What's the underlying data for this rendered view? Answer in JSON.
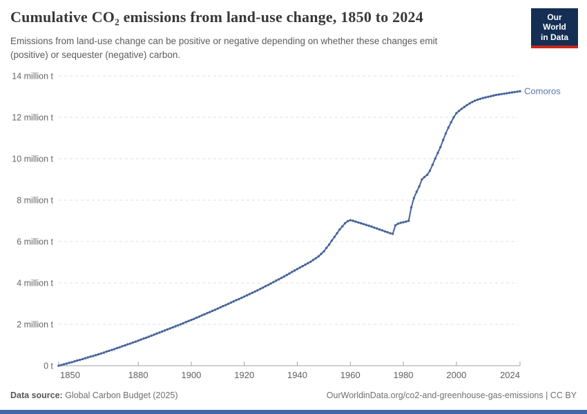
{
  "header": {
    "title": "Cumulative CO₂ emissions from land-use change, 1850 to 2024",
    "subtitle": "Emissions from land-use change can be positive or negative depending on whether these changes emit (positive) or sequester (negative) carbon.",
    "logo": {
      "line1": "Our World",
      "line2": "in Data",
      "bg_color": "#142E54",
      "accent_color": "#C7271C"
    }
  },
  "footer": {
    "source_label": "Data source:",
    "source_value": "Global Carbon Budget (2025)",
    "link": "OurWorldinData.org/co2-and-greenhouse-gas-emissions | CC BY"
  },
  "colors": {
    "line": "#46639B",
    "entity_label": "#5878AE",
    "gridline": "#e2e2e2",
    "axis": "#a0a0a0",
    "y_tick_text": "#666666",
    "x_tick_text": "#5f5f5f",
    "bottom_bar": "#4068A8"
  },
  "chart_data": {
    "type": "line",
    "title": "Cumulative CO₂ emissions from land-use change, 1850 to 2024",
    "subtitle": "Emissions from land-use change can be positive or negative depending on whether these changes emit (positive) or sequester (negative) carbon.",
    "unit": "t",
    "value_scale": "millions of tonnes",
    "xlabel": "",
    "ylabel": "",
    "xlim": [
      1850,
      2024
    ],
    "ylim_million_t": [
      0,
      14
    ],
    "grid": "horizontal-dashed",
    "legend_position": "line-end-label",
    "markers": true,
    "x_ticks": [
      {
        "v": 1850,
        "label": "1850"
      },
      {
        "v": 1880,
        "label": "1880"
      },
      {
        "v": 1900,
        "label": "1900"
      },
      {
        "v": 1920,
        "label": "1920"
      },
      {
        "v": 1940,
        "label": "1940"
      },
      {
        "v": 1960,
        "label": "1960"
      },
      {
        "v": 1980,
        "label": "1980"
      },
      {
        "v": 2000,
        "label": "2000"
      },
      {
        "v": 2024,
        "label": "2024"
      }
    ],
    "y_ticks": [
      {
        "v": 0,
        "label": "0 t"
      },
      {
        "v": 2,
        "label": "2 million t"
      },
      {
        "v": 4,
        "label": "4 million t"
      },
      {
        "v": 6,
        "label": "6 million t"
      },
      {
        "v": 8,
        "label": "8 million t"
      },
      {
        "v": 10,
        "label": "10 million t"
      },
      {
        "v": 12,
        "label": "12 million t"
      },
      {
        "v": 14,
        "label": "14 million t"
      }
    ],
    "series": [
      {
        "name": "Comoros",
        "color": "#46639B",
        "x": [
          1850,
          1851,
          1852,
          1853,
          1854,
          1855,
          1856,
          1857,
          1858,
          1859,
          1860,
          1861,
          1862,
          1863,
          1864,
          1865,
          1866,
          1867,
          1868,
          1869,
          1870,
          1871,
          1872,
          1873,
          1874,
          1875,
          1876,
          1877,
          1878,
          1879,
          1880,
          1881,
          1882,
          1883,
          1884,
          1885,
          1886,
          1887,
          1888,
          1889,
          1890,
          1891,
          1892,
          1893,
          1894,
          1895,
          1896,
          1897,
          1898,
          1899,
          1900,
          1901,
          1902,
          1903,
          1904,
          1905,
          1906,
          1907,
          1908,
          1909,
          1910,
          1911,
          1912,
          1913,
          1914,
          1915,
          1916,
          1917,
          1918,
          1919,
          1920,
          1921,
          1922,
          1923,
          1924,
          1925,
          1926,
          1927,
          1928,
          1929,
          1930,
          1931,
          1932,
          1933,
          1934,
          1935,
          1936,
          1937,
          1938,
          1939,
          1940,
          1941,
          1942,
          1943,
          1944,
          1945,
          1946,
          1947,
          1948,
          1949,
          1950,
          1951,
          1952,
          1953,
          1954,
          1955,
          1956,
          1957,
          1958,
          1959,
          1960,
          1961,
          1962,
          1963,
          1964,
          1965,
          1966,
          1967,
          1968,
          1969,
          1970,
          1971,
          1972,
          1973,
          1974,
          1975,
          1976,
          1977,
          1978,
          1979,
          1980,
          1981,
          1982,
          1983,
          1984,
          1985,
          1986,
          1987,
          1988,
          1989,
          1990,
          1991,
          1992,
          1993,
          1994,
          1995,
          1996,
          1997,
          1998,
          1999,
          2000,
          2001,
          2002,
          2003,
          2004,
          2005,
          2006,
          2007,
          2008,
          2009,
          2010,
          2011,
          2012,
          2013,
          2014,
          2015,
          2016,
          2017,
          2018,
          2019,
          2020,
          2021,
          2022,
          2023,
          2024
        ],
        "y_million_t": [
          0.0,
          0.03,
          0.07,
          0.1,
          0.14,
          0.17,
          0.21,
          0.25,
          0.28,
          0.32,
          0.36,
          0.4,
          0.44,
          0.47,
          0.51,
          0.55,
          0.59,
          0.63,
          0.68,
          0.72,
          0.76,
          0.8,
          0.85,
          0.89,
          0.94,
          0.98,
          1.03,
          1.07,
          1.12,
          1.16,
          1.21,
          1.26,
          1.31,
          1.35,
          1.4,
          1.45,
          1.5,
          1.55,
          1.6,
          1.65,
          1.7,
          1.75,
          1.8,
          1.85,
          1.9,
          1.95,
          2.0,
          2.05,
          2.11,
          2.16,
          2.21,
          2.26,
          2.32,
          2.37,
          2.43,
          2.48,
          2.54,
          2.59,
          2.65,
          2.7,
          2.76,
          2.82,
          2.88,
          2.93,
          2.99,
          3.05,
          3.11,
          3.17,
          3.22,
          3.28,
          3.34,
          3.4,
          3.46,
          3.52,
          3.58,
          3.64,
          3.71,
          3.77,
          3.84,
          3.9,
          3.97,
          4.04,
          4.11,
          4.17,
          4.24,
          4.31,
          4.38,
          4.45,
          4.53,
          4.6,
          4.67,
          4.74,
          4.81,
          4.88,
          4.95,
          5.02,
          5.11,
          5.19,
          5.28,
          5.4,
          5.52,
          5.69,
          5.85,
          6.04,
          6.22,
          6.4,
          6.58,
          6.73,
          6.88,
          6.98,
          7.03,
          7.0,
          6.96,
          6.92,
          6.88,
          6.84,
          6.8,
          6.76,
          6.72,
          6.67,
          6.63,
          6.58,
          6.54,
          6.49,
          6.45,
          6.4,
          6.37,
          6.78,
          6.86,
          6.9,
          6.93,
          6.96,
          7.0,
          7.65,
          8.1,
          8.4,
          8.66,
          9.0,
          9.12,
          9.22,
          9.42,
          9.7,
          10.0,
          10.28,
          10.56,
          10.9,
          11.22,
          11.5,
          11.76,
          12.0,
          12.2,
          12.31,
          12.41,
          12.5,
          12.59,
          12.67,
          12.74,
          12.8,
          12.85,
          12.89,
          12.93,
          12.96,
          12.99,
          13.02,
          13.05,
          13.08,
          13.1,
          13.12,
          13.14,
          13.16,
          13.18,
          13.2,
          13.22,
          13.24,
          13.26
        ]
      }
    ]
  }
}
